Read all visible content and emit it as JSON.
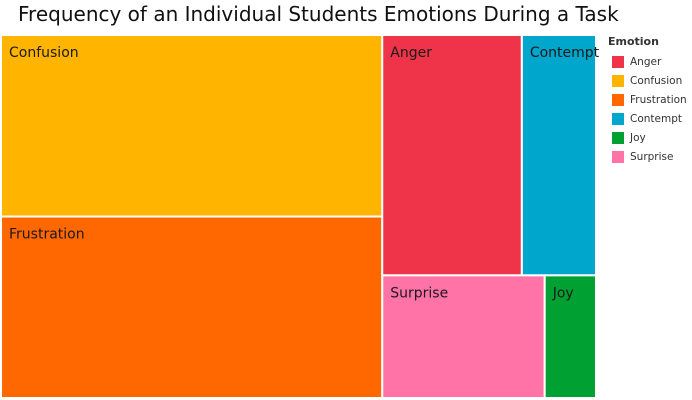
{
  "chart_data": {
    "type": "treemap",
    "title": "Frequency of an Individual Students Emotions During a Task",
    "legend": {
      "title": "Emotion",
      "placement": "right"
    },
    "categories": [
      "Confusion",
      "Frustration",
      "Anger",
      "Contempt",
      "Surprise",
      "Joy"
    ],
    "values": [
      66,
      66,
      32,
      17,
      19,
      6
    ],
    "colors": {
      "Anger": "#ef3349",
      "Confusion": "#ffb400",
      "Frustration": "#ff6700",
      "Contempt": "#00a6cc",
      "Joy": "#00a032",
      "Surprise": "#ff73a6"
    }
  }
}
